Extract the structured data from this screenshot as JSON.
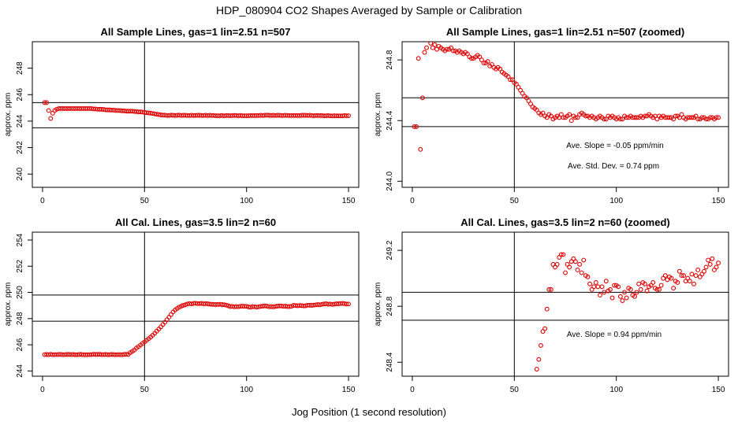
{
  "figure": {
    "title": "HDP_080904  CO2 Shapes Averaged by Sample or Calibration",
    "xlabel": "Jog Position (1 second resolution)",
    "colors": {
      "points": "#e00000",
      "lines": "#000000",
      "background": "#ffffff"
    }
  },
  "chart_data": [
    {
      "type": "scatter",
      "title": "All Sample Lines, gas=1 lin=2.51 n=507",
      "ylabel": "approx. ppm",
      "xlim": [
        -5,
        155
      ],
      "ylim": [
        239,
        250
      ],
      "xticks": [
        0,
        50,
        100,
        150
      ],
      "yticks": [
        240,
        242,
        244,
        246,
        248
      ],
      "vline_x": 50,
      "hlines_y": [
        243.5,
        245.4
      ],
      "annotations": [],
      "series": [
        {
          "name": "sample",
          "x_start": 1,
          "x_step": 1,
          "values": [
            245.4,
            245.4,
            244.8,
            244.2,
            244.6,
            244.8,
            244.9,
            244.95,
            244.95,
            244.95,
            244.95,
            244.95,
            244.95,
            244.95,
            244.95,
            244.95,
            244.95,
            244.95,
            244.95,
            244.95,
            244.95,
            244.95,
            244.95,
            244.95,
            244.92,
            244.92,
            244.9,
            244.9,
            244.9,
            244.88,
            244.85,
            244.85,
            244.85,
            244.83,
            244.83,
            244.8,
            244.8,
            244.8,
            244.78,
            244.78,
            244.75,
            244.75,
            244.75,
            244.75,
            244.73,
            244.72,
            244.7,
            244.7,
            244.68,
            244.66,
            244.64,
            244.62,
            244.6,
            244.58,
            244.55,
            244.52,
            244.5,
            244.47,
            244.45,
            244.45,
            244.43,
            244.43,
            244.45,
            244.44,
            244.43,
            244.44,
            244.45,
            244.43,
            244.44,
            244.44,
            244.43,
            244.42,
            244.44,
            244.43,
            244.43,
            244.44,
            244.44,
            244.43,
            244.43,
            244.44,
            244.42,
            244.44,
            244.43,
            244.43,
            244.41,
            244.41,
            244.41,
            244.43,
            244.4,
            244.42,
            244.42,
            244.41,
            244.42,
            244.43,
            244.43,
            244.41,
            244.43,
            244.41,
            244.41,
            244.41,
            244.41,
            244.42,
            244.42,
            244.42,
            244.42,
            244.42,
            244.44,
            244.43,
            244.44,
            244.45,
            244.44,
            244.43,
            244.44,
            244.43,
            244.44,
            244.44,
            244.43,
            244.42,
            244.44,
            244.43,
            244.42,
            244.42,
            244.42,
            244.43,
            244.42,
            244.42,
            244.44,
            244.44,
            244.44,
            244.43,
            244.44,
            244.42,
            244.41,
            244.43,
            244.42,
            244.42,
            244.42,
            244.4,
            244.41,
            244.42,
            244.4,
            244.39,
            244.41,
            244.4,
            244.4,
            244.39,
            244.4,
            244.42,
            244.41,
            244.41
          ]
        }
      ]
    },
    {
      "type": "scatter",
      "title": "All Sample Lines, gas=1 lin=2.51 n=507 (zoomed)",
      "ylabel": "approx. ppm",
      "xlim": [
        -5,
        155
      ],
      "ylim": [
        243.96,
        244.92
      ],
      "xticks": [
        0,
        50,
        100,
        150
      ],
      "yticks": [
        244.0,
        244.4,
        244.8
      ],
      "ytick_labels": [
        "244.0",
        "244.4",
        "244.8"
      ],
      "vline_x": 50,
      "hlines_y": [
        244.36,
        244.55
      ],
      "annotations": [
        "Ave. Slope = -0.05 ppm/min",
        "Ave. Std. Dev. = 0.74 ppm"
      ],
      "series": [
        {
          "name": "sample-zoomed",
          "x_start": 1,
          "x_step": 1,
          "values": [
            244.36,
            244.36,
            244.81,
            244.21,
            244.55,
            244.85,
            244.88,
            244.93,
            244.91,
            244.88,
            244.9,
            244.87,
            244.89,
            244.88,
            244.87,
            244.86,
            244.87,
            244.87,
            244.88,
            244.86,
            244.86,
            244.85,
            244.86,
            244.85,
            244.84,
            244.85,
            244.84,
            244.82,
            244.81,
            244.81,
            244.82,
            244.83,
            244.82,
            244.8,
            244.78,
            244.78,
            244.79,
            244.76,
            244.77,
            244.75,
            244.74,
            244.75,
            244.74,
            244.72,
            244.71,
            244.7,
            244.69,
            244.67,
            244.67,
            244.65,
            244.64,
            244.62,
            244.6,
            244.58,
            244.56,
            244.55,
            244.53,
            244.51,
            244.49,
            244.48,
            244.47,
            244.45,
            244.44,
            244.45,
            244.43,
            244.42,
            244.44,
            244.43,
            244.41,
            244.42,
            244.43,
            244.42,
            244.44,
            244.42,
            244.42,
            244.43,
            244.44,
            244.4,
            244.43,
            244.42,
            244.42,
            244.44,
            244.45,
            244.44,
            244.43,
            244.43,
            244.42,
            244.43,
            244.42,
            244.41,
            244.42,
            244.43,
            244.42,
            244.41,
            244.41,
            244.43,
            244.42,
            244.43,
            244.42,
            244.41,
            244.42,
            244.41,
            244.41,
            244.43,
            244.42,
            244.42,
            244.43,
            244.42,
            244.42,
            244.42,
            244.42,
            244.43,
            244.42,
            244.43,
            244.43,
            244.44,
            244.43,
            244.42,
            244.43,
            244.41,
            244.43,
            244.42,
            244.43,
            244.42,
            244.42,
            244.42,
            244.42,
            244.41,
            244.43,
            244.43,
            244.42,
            244.44,
            244.42,
            244.41,
            244.42,
            244.42,
            244.42,
            244.42,
            244.43,
            244.41,
            244.41,
            244.42,
            244.42,
            244.41,
            244.41,
            244.42,
            244.42,
            244.41,
            244.42,
            244.42
          ]
        }
      ]
    },
    {
      "type": "scatter",
      "title": "All Cal. Lines, gas=3.5 lin=2 n=60",
      "ylabel": "approx. ppm",
      "xlim": [
        -5,
        155
      ],
      "ylim": [
        243.6,
        254.6
      ],
      "xticks": [
        0,
        50,
        100,
        150
      ],
      "yticks": [
        244,
        246,
        248,
        250,
        252,
        254
      ],
      "vline_x": 50,
      "hlines_y": [
        247.8,
        249.8
      ],
      "annotations": [],
      "series": [
        {
          "name": "calibration",
          "x_start": 1,
          "x_step": 1,
          "values": [
            245.25,
            245.26,
            245.24,
            245.27,
            245.24,
            245.25,
            245.25,
            245.26,
            245.26,
            245.24,
            245.25,
            245.26,
            245.26,
            245.25,
            245.26,
            245.24,
            245.24,
            245.26,
            245.26,
            245.24,
            245.24,
            245.24,
            245.25,
            245.25,
            245.27,
            245.26,
            245.26,
            245.27,
            245.25,
            245.25,
            245.26,
            245.24,
            245.25,
            245.26,
            245.25,
            245.24,
            245.25,
            245.25,
            245.24,
            245.26,
            245.27,
            245.26,
            245.4,
            245.5,
            245.6,
            245.75,
            245.86,
            245.98,
            246.1,
            246.22,
            246.34,
            246.46,
            246.59,
            246.73,
            246.88,
            247.04,
            247.2,
            247.37,
            247.55,
            247.72,
            247.92,
            248.11,
            248.31,
            248.51,
            248.66,
            248.77,
            248.87,
            248.95,
            249.01,
            249.06,
            249.11,
            249.15,
            249.12,
            249.16,
            249.17,
            249.14,
            249.15,
            249.16,
            249.13,
            249.14,
            249.13,
            249.1,
            249.09,
            249.08,
            249.07,
            249.08,
            249.09,
            249.07,
            249.06,
            249.03,
            248.98,
            248.92,
            248.93,
            248.9,
            248.92,
            248.91,
            248.94,
            248.95,
            248.93,
            248.94,
            248.89,
            248.87,
            248.92,
            248.9,
            248.88,
            248.91,
            248.93,
            248.95,
            248.97,
            248.95,
            248.91,
            248.92,
            248.9,
            248.92,
            248.95,
            248.96,
            248.96,
            248.94,
            248.95,
            248.92,
            248.92,
            248.93,
            249.01,
            249.0,
            248.98,
            249.0,
            248.99,
            248.97,
            248.98,
            249.02,
            249.02,
            249.01,
            249.03,
            249.05,
            249.07,
            249.06,
            249.09,
            249.12,
            249.13,
            249.1,
            249.11,
            249.08,
            249.1,
            249.13,
            249.13,
            249.15,
            249.16,
            249.14,
            249.11,
            249.11
          ]
        }
      ]
    },
    {
      "type": "scatter",
      "title": "All Cal. Lines, gas=3.5 lin=2 n=60 (zoomed)",
      "ylabel": "approx. ppm",
      "xlim": [
        -5,
        155
      ],
      "ylim": [
        248.3,
        249.33
      ],
      "xticks": [
        0,
        50,
        100,
        150
      ],
      "yticks": [
        248.4,
        248.8,
        249.2
      ],
      "ytick_labels": [
        "248.4",
        "248.8",
        "249.2"
      ],
      "vline_x": 50,
      "hlines_y": [
        248.7,
        248.9
      ],
      "annotations": [
        "Ave. Slope = 0.94 ppm/min"
      ],
      "series": [
        {
          "name": "calibration-zoomed",
          "x_start": 61,
          "x_step": 1,
          "values": [
            248.35,
            248.42,
            248.52,
            248.62,
            248.64,
            248.78,
            248.92,
            248.92,
            249.1,
            249.08,
            249.1,
            249.15,
            249.17,
            249.17,
            249.04,
            249.1,
            249.08,
            249.12,
            249.14,
            249.12,
            249.06,
            249.1,
            249.04,
            249.13,
            249.02,
            249.01,
            248.96,
            248.92,
            248.94,
            248.97,
            248.94,
            248.88,
            248.94,
            248.9,
            248.98,
            248.91,
            248.92,
            248.86,
            248.95,
            248.95,
            248.94,
            248.87,
            248.84,
            248.9,
            248.86,
            248.93,
            248.92,
            248.88,
            248.87,
            248.9,
            248.96,
            248.92,
            248.97,
            248.96,
            248.91,
            248.94,
            248.95,
            248.97,
            248.93,
            248.92,
            248.92,
            248.95,
            249.0,
            249.02,
            248.99,
            249.01,
            249.0,
            248.93,
            248.98,
            248.97,
            249.05,
            249.02,
            249.02,
            248.98,
            249.0,
            248.98,
            249.03,
            248.96,
            249.02,
            249.06,
            249.01,
            249.03,
            249.05,
            249.08,
            249.13,
            249.1,
            249.14,
            249.06,
            249.08,
            249.11
          ]
        }
      ]
    }
  ]
}
